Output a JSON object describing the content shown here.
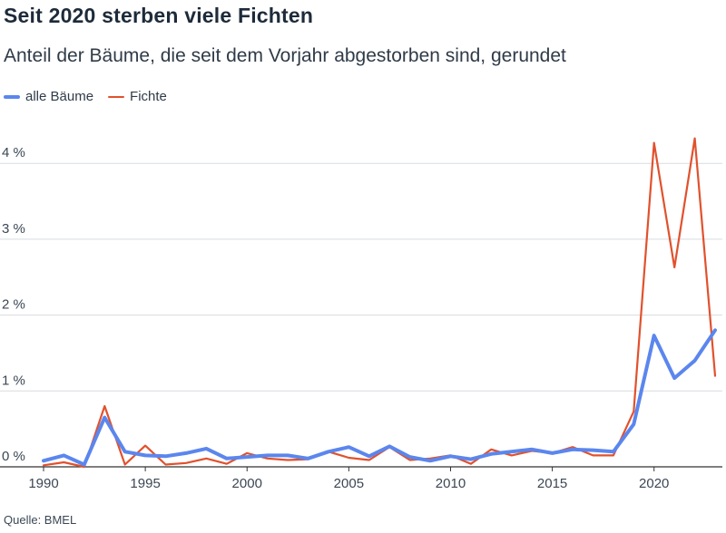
{
  "chart_data": {
    "type": "line",
    "title": "Seit 2020 sterben viele Fichten",
    "subtitle": "Anteil der Bäume, die seit dem Vorjahr abgestorben sind, gerundet",
    "source": "Quelle: BMEL",
    "legend_position": "top-left",
    "grid": true,
    "xlim": [
      1990,
      2023
    ],
    "ylim": [
      0,
      4.6
    ],
    "x_ticks": [
      1990,
      1995,
      2000,
      2005,
      2010,
      2015,
      2020
    ],
    "y_ticks": [
      0,
      1,
      2,
      3,
      4
    ],
    "y_tick_labels": [
      "0 %",
      "1 %",
      "2 %",
      "3 %",
      "4 %"
    ],
    "x": [
      1990,
      1991,
      1992,
      1993,
      1994,
      1995,
      1996,
      1997,
      1998,
      1999,
      2000,
      2001,
      2002,
      2003,
      2004,
      2005,
      2006,
      2007,
      2008,
      2009,
      2010,
      2011,
      2012,
      2013,
      2014,
      2015,
      2016,
      2017,
      2018,
      2019,
      2020,
      2021,
      2022,
      2023
    ],
    "series": [
      {
        "name": "alle Bäume",
        "color": "#5b86ee",
        "values": [
          0.08,
          0.15,
          0.03,
          0.65,
          0.2,
          0.15,
          0.14,
          0.18,
          0.24,
          0.11,
          0.13,
          0.15,
          0.15,
          0.11,
          0.2,
          0.26,
          0.14,
          0.27,
          0.13,
          0.08,
          0.14,
          0.1,
          0.17,
          0.2,
          0.23,
          0.18,
          0.23,
          0.22,
          0.2,
          0.56,
          1.73,
          1.17,
          1.4,
          1.8
        ]
      },
      {
        "name": "Fichte",
        "color": "#e1512d",
        "values": [
          0.02,
          0.06,
          0.0,
          0.8,
          0.03,
          0.28,
          0.03,
          0.05,
          0.11,
          0.04,
          0.18,
          0.11,
          0.09,
          0.1,
          0.2,
          0.12,
          0.09,
          0.26,
          0.09,
          0.11,
          0.15,
          0.04,
          0.23,
          0.15,
          0.21,
          0.18,
          0.26,
          0.15,
          0.15,
          0.73,
          4.27,
          2.63,
          4.33,
          1.2
        ]
      }
    ]
  }
}
